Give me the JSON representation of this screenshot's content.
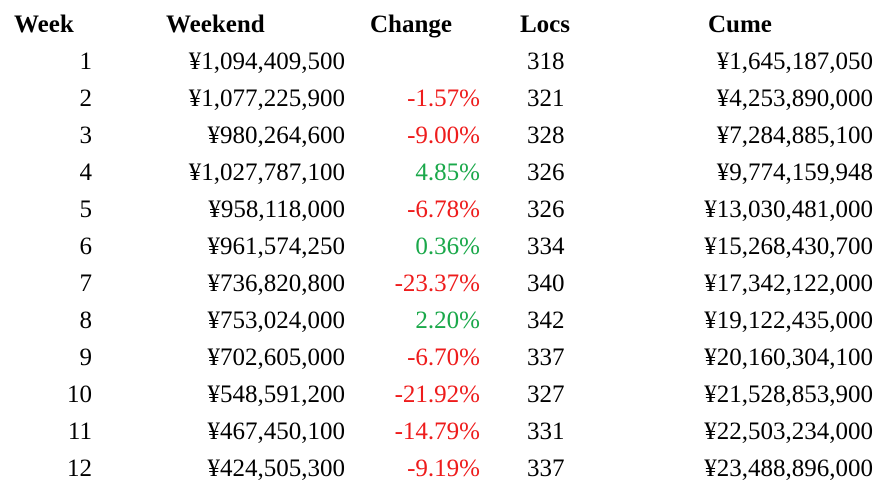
{
  "headers": {
    "week": "Week",
    "weekend": "Weekend",
    "change": "Change",
    "locs": "Locs",
    "cume": "Cume"
  },
  "colors": {
    "positive": "#1aa84a",
    "negative": "#ee1c1c",
    "text": "#000000"
  },
  "rows": [
    {
      "week": "1",
      "weekend": "¥1,094,409,500",
      "change": "",
      "direction": "none",
      "locs": "318",
      "cume": "¥1,645,187,050"
    },
    {
      "week": "2",
      "weekend": "¥1,077,225,900",
      "change": "-1.57%",
      "direction": "down",
      "locs": "321",
      "cume": "¥4,253,890,000"
    },
    {
      "week": "3",
      "weekend": "¥980,264,600",
      "change": "-9.00%",
      "direction": "down",
      "locs": "328",
      "cume": "¥7,284,885,100"
    },
    {
      "week": "4",
      "weekend": "¥1,027,787,100",
      "change": "4.85%",
      "direction": "up",
      "locs": "326",
      "cume": "¥9,774,159,948"
    },
    {
      "week": "5",
      "weekend": "¥958,118,000",
      "change": "-6.78%",
      "direction": "down",
      "locs": "326",
      "cume": "¥13,030,481,000"
    },
    {
      "week": "6",
      "weekend": "¥961,574,250",
      "change": "0.36%",
      "direction": "up",
      "locs": "334",
      "cume": "¥15,268,430,700"
    },
    {
      "week": "7",
      "weekend": "¥736,820,800",
      "change": "-23.37%",
      "direction": "down",
      "locs": "340",
      "cume": "¥17,342,122,000"
    },
    {
      "week": "8",
      "weekend": "¥753,024,000",
      "change": "2.20%",
      "direction": "up",
      "locs": "342",
      "cume": "¥19,122,435,000"
    },
    {
      "week": "9",
      "weekend": "¥702,605,000",
      "change": "-6.70%",
      "direction": "down",
      "locs": "337",
      "cume": "¥20,160,304,100"
    },
    {
      "week": "10",
      "weekend": "¥548,591,200",
      "change": "-21.92%",
      "direction": "down",
      "locs": "327",
      "cume": "¥21,528,853,900"
    },
    {
      "week": "11",
      "weekend": "¥467,450,100",
      "change": "-14.79%",
      "direction": "down",
      "locs": "331",
      "cume": "¥22,503,234,000"
    },
    {
      "week": "12",
      "weekend": "¥424,505,300",
      "change": "-9.19%",
      "direction": "down",
      "locs": "337",
      "cume": "¥23,488,896,000"
    }
  ]
}
